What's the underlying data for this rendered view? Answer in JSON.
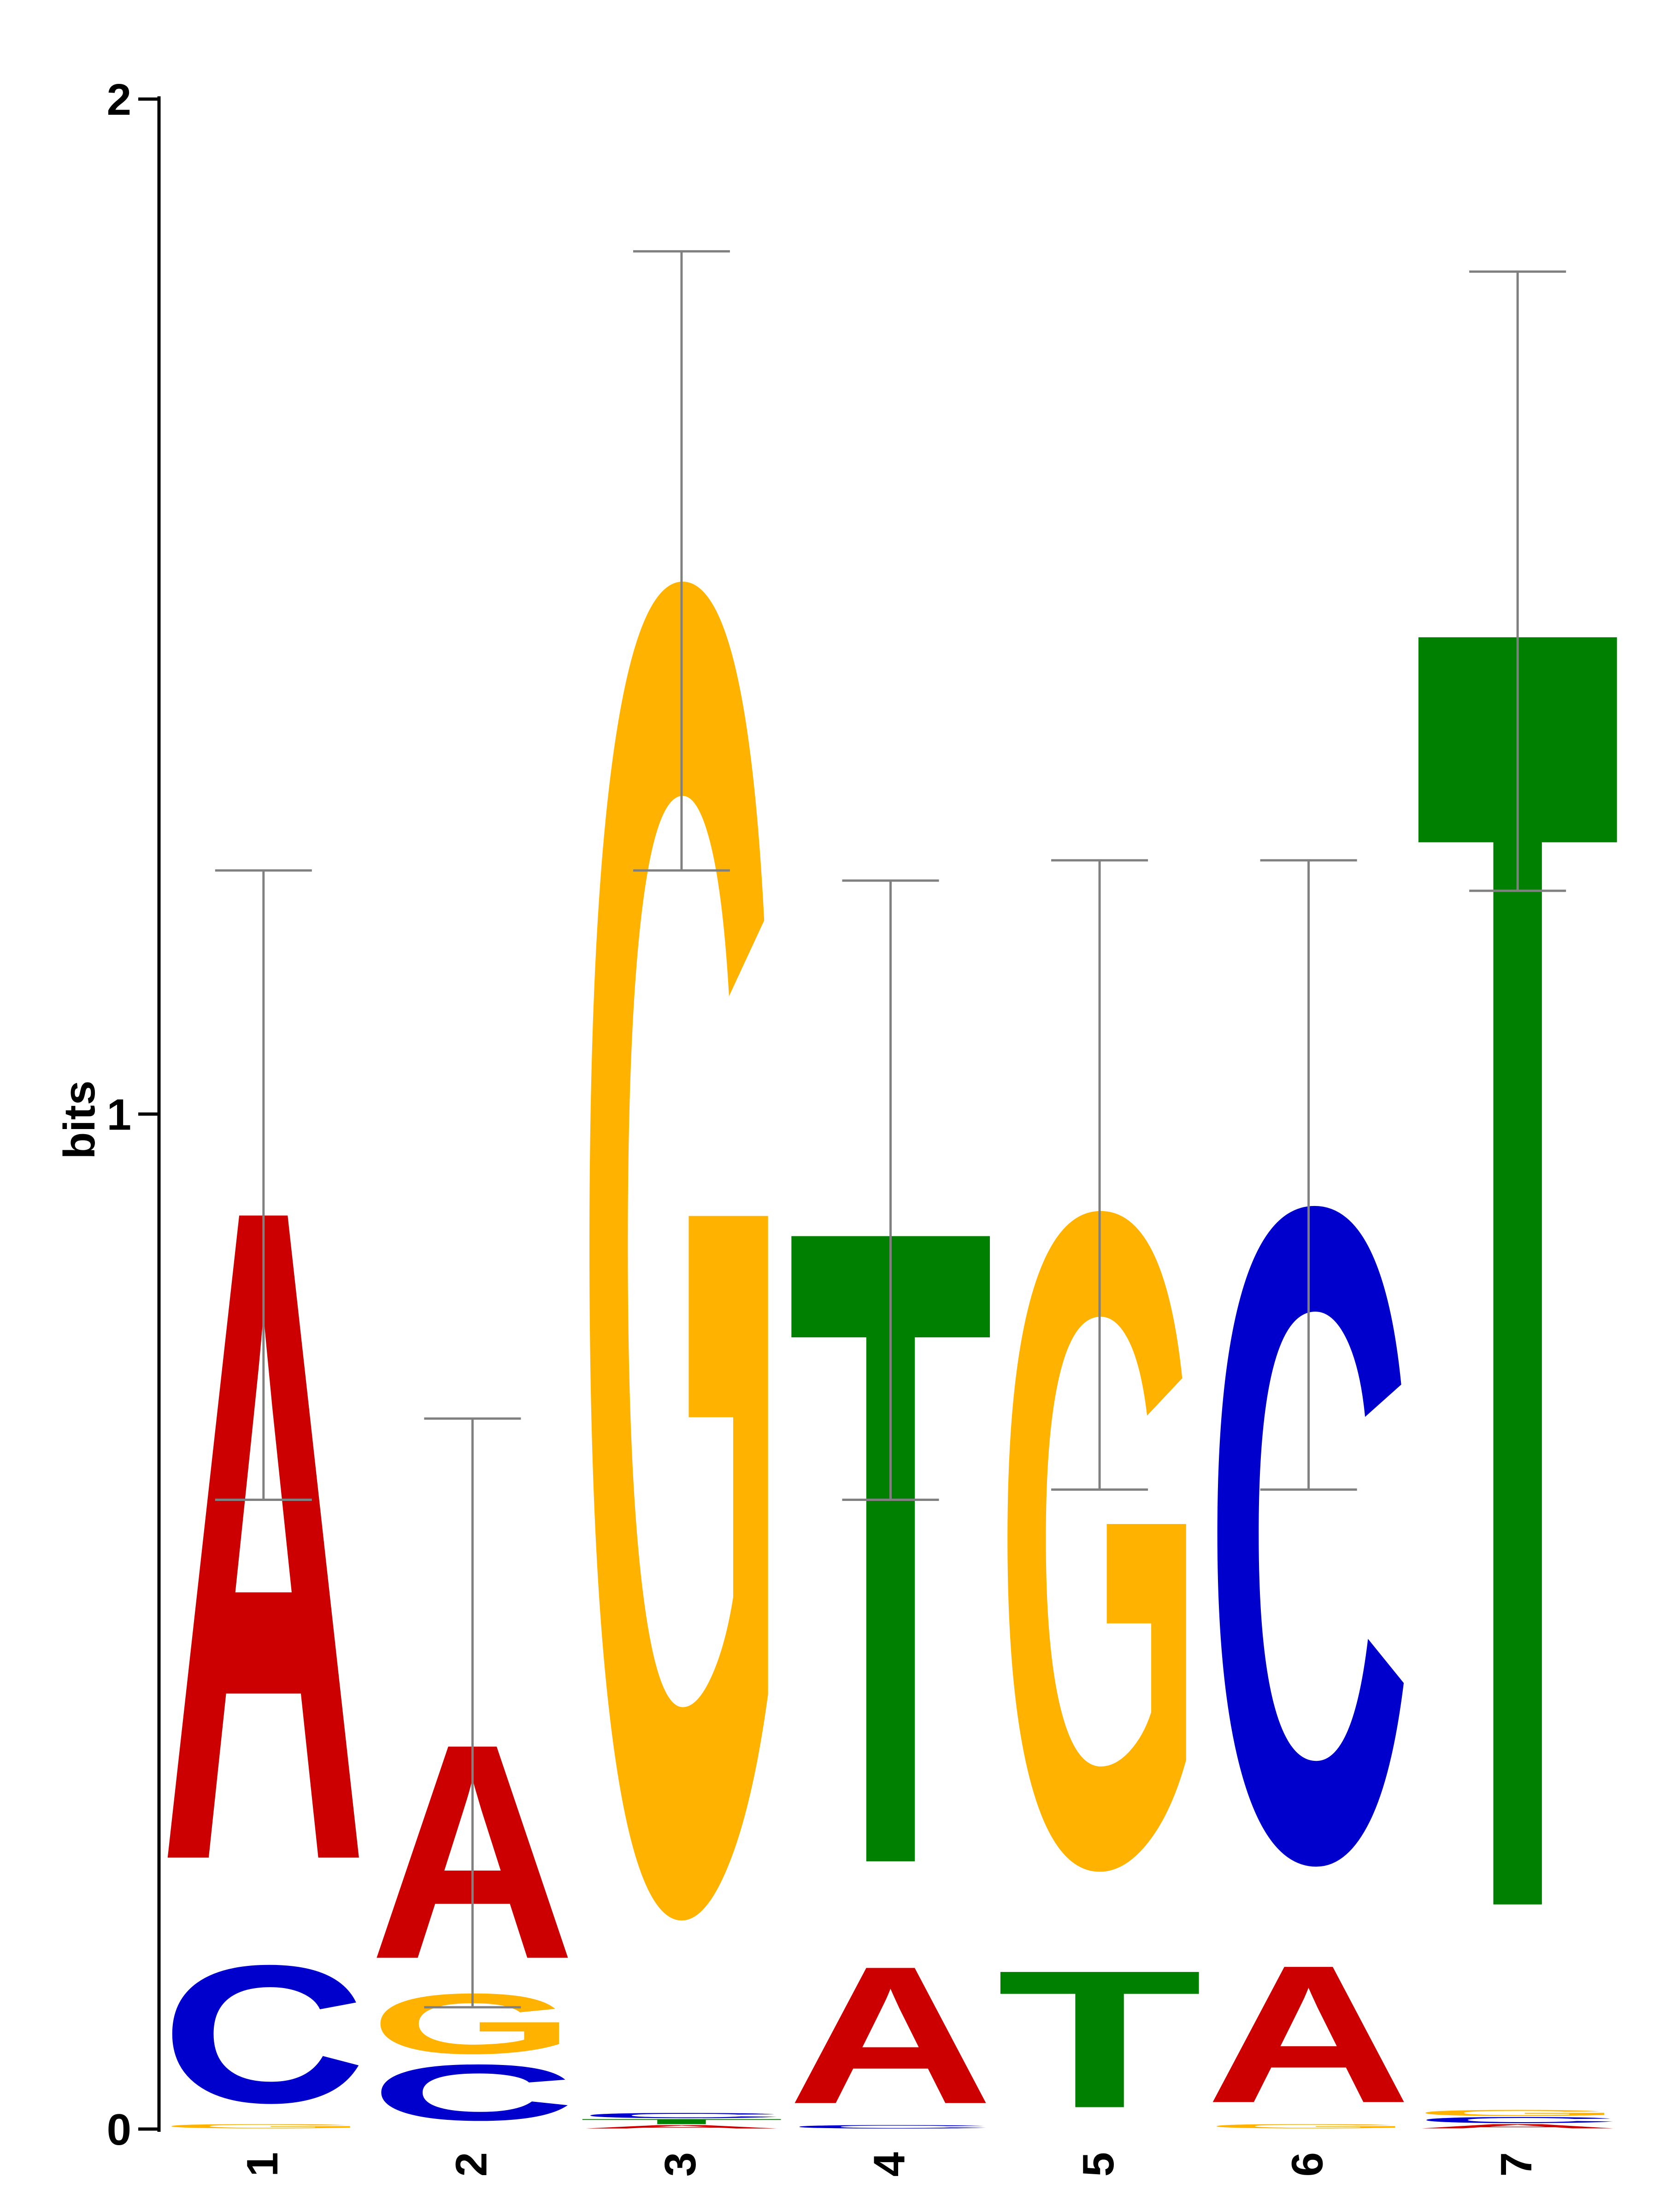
{
  "chart_data": {
    "type": "sequence-logo",
    "ylabel": "bits",
    "ylim": [
      0,
      2
    ],
    "yticks": [
      "0",
      "1",
      "2"
    ],
    "positions": [
      "1",
      "2",
      "3",
      "4",
      "5",
      "6",
      "7"
    ],
    "colors": {
      "A": "#cc0000",
      "C": "#0000cc",
      "G": "#ffb300",
      "T": "#008000",
      "errorbar": "#808080"
    },
    "stacks": [
      {
        "position": "1",
        "letters": [
          {
            "base": "G",
            "bits": 0.005
          },
          {
            "base": "C",
            "bits": 0.16
          },
          {
            "base": "A",
            "bits": 0.76
          }
        ],
        "error": [
          0.62,
          1.24
        ]
      },
      {
        "position": "2",
        "letters": [
          {
            "base": "C",
            "bits": 0.065
          },
          {
            "base": "G",
            "bits": 0.07
          },
          {
            "base": "A",
            "bits": 0.25
          }
        ],
        "error": [
          0.12,
          0.7
        ]
      },
      {
        "position": "3",
        "letters": [
          {
            "base": "A",
            "bits": 0.004
          },
          {
            "base": "T",
            "bits": 0.006
          },
          {
            "base": "C",
            "bits": 0.006
          },
          {
            "base": "G",
            "bits": 1.54
          }
        ],
        "error": [
          1.24,
          1.85
        ]
      },
      {
        "position": "4",
        "letters": [
          {
            "base": "C",
            "bits": 0.004
          },
          {
            "base": "A",
            "bits": 0.16
          },
          {
            "base": "T",
            "bits": 0.74
          }
        ],
        "error": [
          0.62,
          1.23
        ]
      },
      {
        "position": "5",
        "letters": [
          {
            "base": "T",
            "bits": 0.16
          },
          {
            "base": "G",
            "bits": 0.76
          }
        ],
        "error": [
          0.63,
          1.25
        ]
      },
      {
        "position": "6",
        "letters": [
          {
            "base": "G",
            "bits": 0.005
          },
          {
            "base": "A",
            "bits": 0.16
          },
          {
            "base": "C",
            "bits": 0.76
          }
        ],
        "error": [
          0.63,
          1.25
        ]
      },
      {
        "position": "7",
        "letters": [
          {
            "base": "A",
            "bits": 0.005
          },
          {
            "base": "C",
            "bits": 0.007
          },
          {
            "base": "G",
            "bits": 0.007
          },
          {
            "base": "T",
            "bits": 1.5
          }
        ],
        "error": [
          1.22,
          1.83
        ]
      }
    ]
  }
}
